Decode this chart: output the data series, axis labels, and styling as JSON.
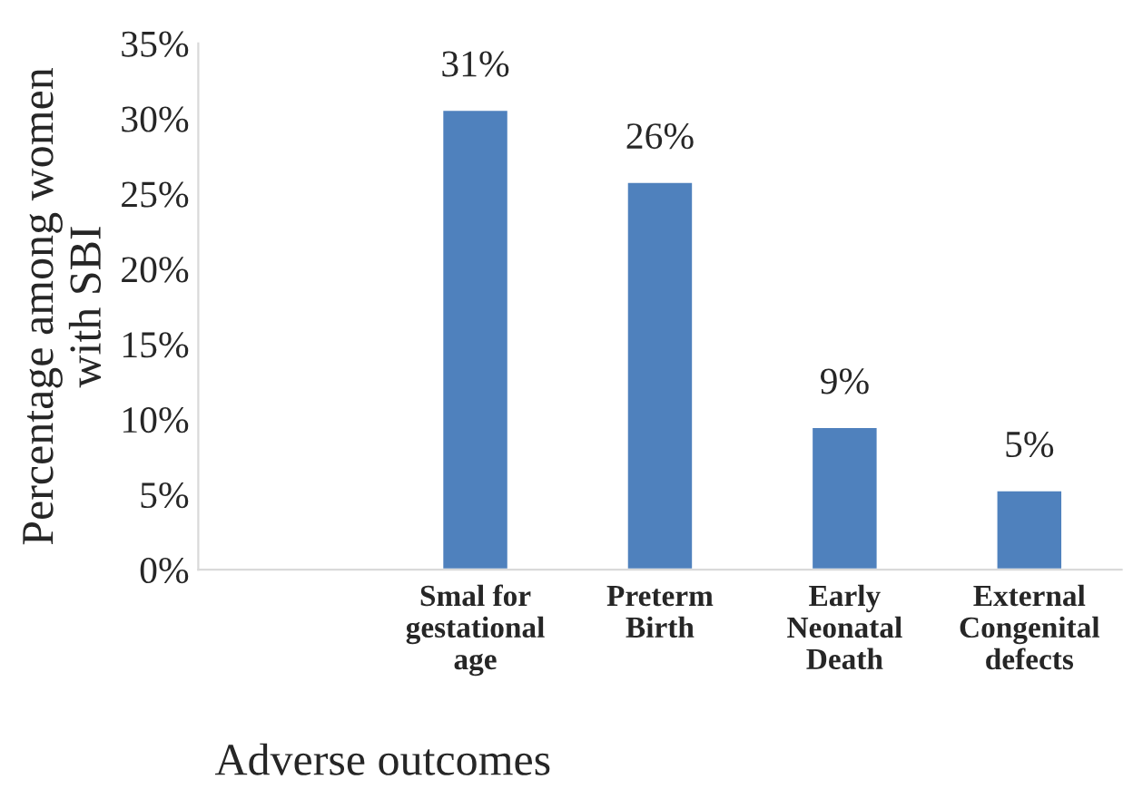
{
  "chart_data": {
    "type": "bar",
    "xlabel": "Adverse outcomes",
    "ylabel": "Percentage among women\nwith SBI",
    "categories": [
      null,
      "Smal for\ngestational\nage",
      "Preterm\nBirth",
      "Early\nNeonatal\nDeath",
      "External\nCongenital\ndefects"
    ],
    "values": [
      null,
      30.6,
      25.8,
      9.5,
      5.3
    ],
    "value_labels": [
      null,
      "31%",
      "26%",
      "9%",
      "5%"
    ],
    "color": "#4f81bd",
    "ylim": [
      0,
      35
    ],
    "yticks": [
      {
        "value": 0,
        "label": "0%"
      },
      {
        "value": 5,
        "label": "5%"
      },
      {
        "value": 10,
        "label": "10%"
      },
      {
        "value": 15,
        "label": "15%"
      },
      {
        "value": 20,
        "label": "20%"
      },
      {
        "value": 25,
        "label": "25%"
      },
      {
        "value": 30,
        "label": "30%"
      },
      {
        "value": 35,
        "label": "35%"
      }
    ],
    "grid": false,
    "legend": false
  }
}
